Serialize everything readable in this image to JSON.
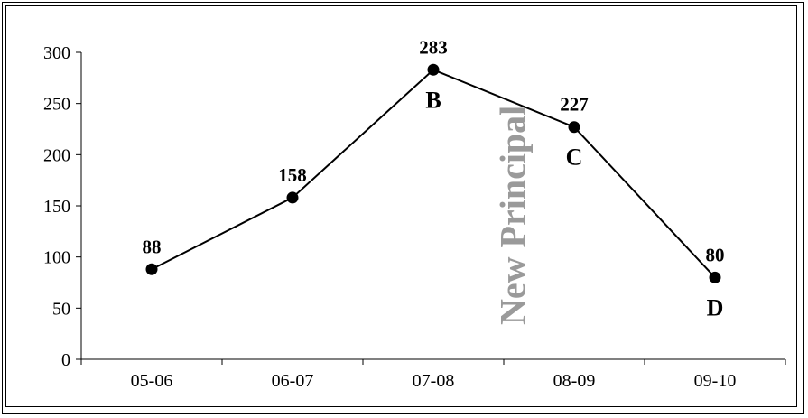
{
  "chart_data": {
    "type": "line",
    "title": "",
    "xlabel": "",
    "ylabel": "",
    "categories": [
      "05-06",
      "06-07",
      "07-08",
      "08-09",
      "09-10"
    ],
    "series": [
      {
        "values": [
          88,
          158,
          283,
          227,
          80
        ]
      }
    ],
    "data_labels": [
      "88",
      "158",
      "283",
      "227",
      "80"
    ],
    "point_letters": [
      "",
      "",
      "B",
      "C",
      "D"
    ],
    "ylim": [
      0,
      300
    ],
    "yticks": [
      0,
      50,
      100,
      150,
      200,
      250,
      300
    ],
    "ytick_labels": [
      "0",
      "50",
      "100",
      "150",
      "200",
      "250",
      "300"
    ],
    "grid": false,
    "legend": "none",
    "annotation": {
      "text": "New Principal",
      "orientation": "vertical"
    },
    "colors": {
      "line": "#000000",
      "marker": "#000000",
      "annotation": "#9a9a9a"
    }
  }
}
